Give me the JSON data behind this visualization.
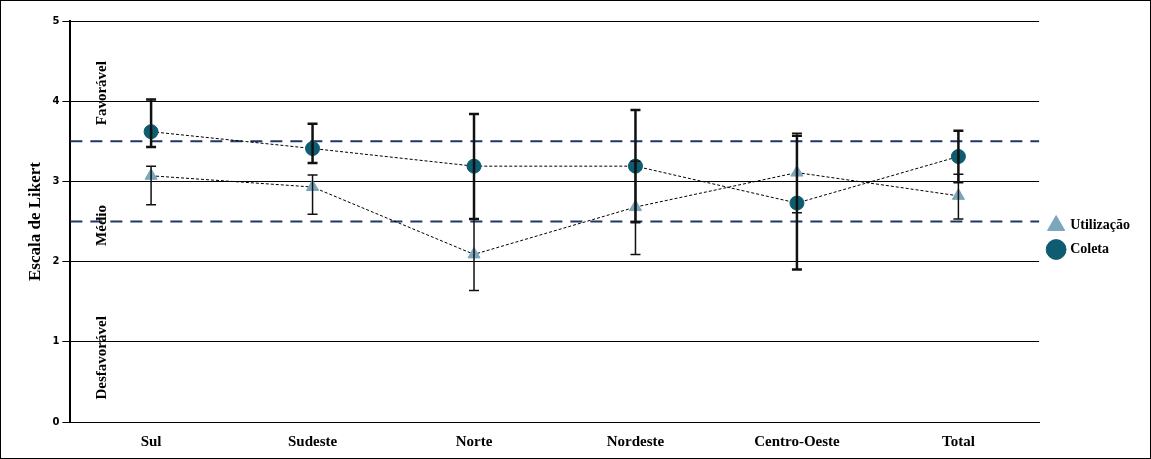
{
  "chart_data": {
    "type": "line",
    "ylabel": "Escala de Likert",
    "categories": [
      "Sul",
      "Sudeste",
      "Norte",
      "Nordeste",
      "Centro-Oeste",
      "Total"
    ],
    "series": [
      {
        "name": "Utilização",
        "color": "#7ba7ba",
        "marker": "triangle",
        "values": [
          3.07,
          2.93,
          2.09,
          2.68,
          3.11,
          2.82
        ],
        "errors": [
          [
            2.71,
            3.19
          ],
          [
            2.59,
            3.08
          ],
          [
            1.64,
            2.53
          ],
          [
            2.09,
            3.25
          ],
          [
            2.61,
            3.6
          ],
          [
            2.53,
            3.09
          ]
        ]
      },
      {
        "name": "Coleta",
        "color": "#0e5c70",
        "marker": "circle",
        "values": [
          3.62,
          3.41,
          3.19,
          3.19,
          2.73,
          3.31
        ],
        "errors": [
          [
            3.43,
            4.02
          ],
          [
            3.23,
            3.72
          ],
          [
            2.53,
            3.84
          ],
          [
            2.49,
            3.89
          ],
          [
            1.9,
            3.57
          ],
          [
            2.99,
            3.63
          ]
        ]
      }
    ],
    "line_style": "dashed",
    "ylim": [
      0,
      5
    ],
    "yticks": [
      0,
      1,
      2,
      3,
      4,
      5
    ],
    "grid": "y",
    "legend": "right",
    "ref_lines": [
      {
        "axis": "y",
        "value": 3.5,
        "color": "#1f3864",
        "line_style": "dashed"
      },
      {
        "axis": "y",
        "value": 2.5,
        "color": "#1f3864",
        "line_style": "dashed"
      }
    ],
    "annotations": [
      "Favorável",
      "Médio",
      "Desfavorável"
    ]
  }
}
